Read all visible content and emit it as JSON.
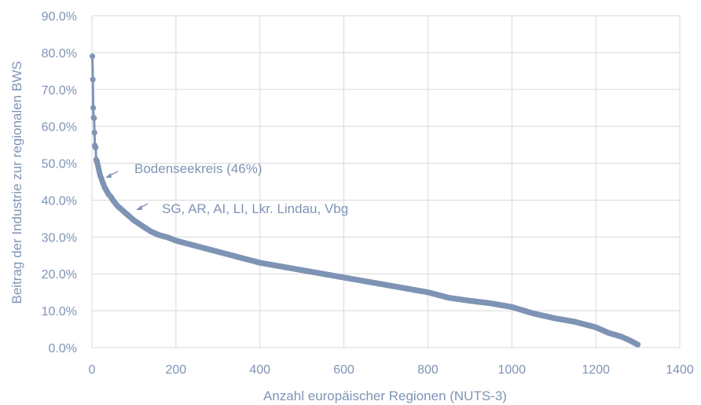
{
  "chart_data": {
    "type": "scatter",
    "xlabel": "Anzahl europäischer Regionen (NUTS-3)",
    "ylabel": "Beitrag der Industrie zur regionalen BWS",
    "xlim": [
      0,
      1400
    ],
    "ylim": [
      0,
      90
    ],
    "x_ticks": [
      "0",
      "200",
      "400",
      "600",
      "800",
      "1000",
      "1200",
      "1400"
    ],
    "y_ticks": [
      "0.0%",
      "10.0%",
      "20.0%",
      "30.0%",
      "40.0%",
      "50.0%",
      "60.0%",
      "70.0%",
      "80.0%",
      "90.0%"
    ],
    "grid": true,
    "marker_color": "#7f94b5",
    "series": [
      {
        "points": [
          [
            1,
            79
          ],
          [
            2,
            72.7
          ],
          [
            3,
            65
          ],
          [
            4,
            62.4
          ],
          [
            5,
            62.2
          ],
          [
            6,
            58.3
          ],
          [
            7,
            54.8
          ],
          [
            8,
            54.3
          ],
          [
            9,
            54.3
          ],
          [
            10,
            51
          ],
          [
            12,
            50.5
          ],
          [
            14,
            49.5
          ],
          [
            16,
            48.5
          ],
          [
            18,
            47.4
          ],
          [
            20,
            46.5
          ],
          [
            22,
            46
          ],
          [
            25,
            45
          ],
          [
            30,
            43.5
          ],
          [
            35,
            42.5
          ],
          [
            40,
            41.5
          ],
          [
            45,
            40.9
          ],
          [
            50,
            40
          ],
          [
            60,
            38.5
          ],
          [
            70,
            37.5
          ],
          [
            80,
            36.5
          ],
          [
            90,
            35.5
          ],
          [
            100,
            34.5
          ],
          [
            120,
            33
          ],
          [
            140,
            31.5
          ],
          [
            160,
            30.5
          ],
          [
            180,
            29.9
          ],
          [
            200,
            29
          ],
          [
            250,
            27.5
          ],
          [
            300,
            26
          ],
          [
            350,
            24.5
          ],
          [
            400,
            23
          ],
          [
            450,
            22
          ],
          [
            500,
            21
          ],
          [
            550,
            20
          ],
          [
            600,
            19
          ],
          [
            650,
            18
          ],
          [
            700,
            17
          ],
          [
            750,
            16
          ],
          [
            800,
            15
          ],
          [
            850,
            13.5
          ],
          [
            900,
            12.7
          ],
          [
            950,
            12
          ],
          [
            1000,
            11
          ],
          [
            1050,
            9.3
          ],
          [
            1100,
            8
          ],
          [
            1150,
            7
          ],
          [
            1200,
            5.5
          ],
          [
            1230,
            4
          ],
          [
            1260,
            3
          ],
          [
            1280,
            2
          ],
          [
            1300,
            0.8
          ]
        ]
      }
    ],
    "annotations": [
      {
        "text": "Bodenseekreis (46%)",
        "x": 20,
        "y": 46
      },
      {
        "text": "SG, AR, AI, LI, Lkr. Lindau, Vbg",
        "x": 100,
        "y": 38
      }
    ]
  }
}
